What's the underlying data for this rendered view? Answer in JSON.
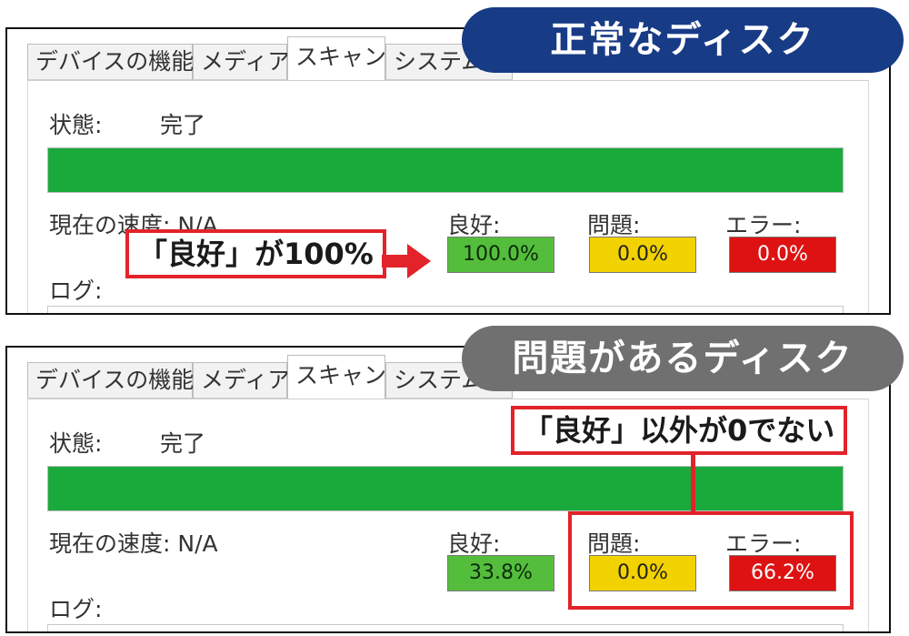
{
  "tabs": [
    "デバイスの機能",
    "メディア",
    "スキャン",
    "システム"
  ],
  "active_tab": 2,
  "labels": {
    "status": "状態:",
    "speed": "現在の速度: N/A",
    "log": "ログ:",
    "good": "良好:",
    "problem": "問題:",
    "error": "エラー:"
  },
  "panels": {
    "top": {
      "status_value": "完了",
      "progress_percent": 100,
      "good": "100.0%",
      "problem": "0.0%",
      "error": "0.0%"
    },
    "bottom": {
      "status_value": "完了",
      "progress_percent": 100,
      "good": "33.8%",
      "problem": "0.0%",
      "error": "66.2%"
    }
  },
  "banners": {
    "top": "正常なディスク",
    "bottom": "問題があるディスク"
  },
  "callouts": {
    "top": "「良好」が100%",
    "bottom": "「良好」以外が0でない"
  },
  "colors": {
    "progress": "#1aaa3c",
    "good": "#55bd3c",
    "problem": "#f2d200",
    "error": "#de1212",
    "banner_top": "#183b86",
    "banner_bottom": "#707070",
    "callout_border": "#e2232a"
  }
}
